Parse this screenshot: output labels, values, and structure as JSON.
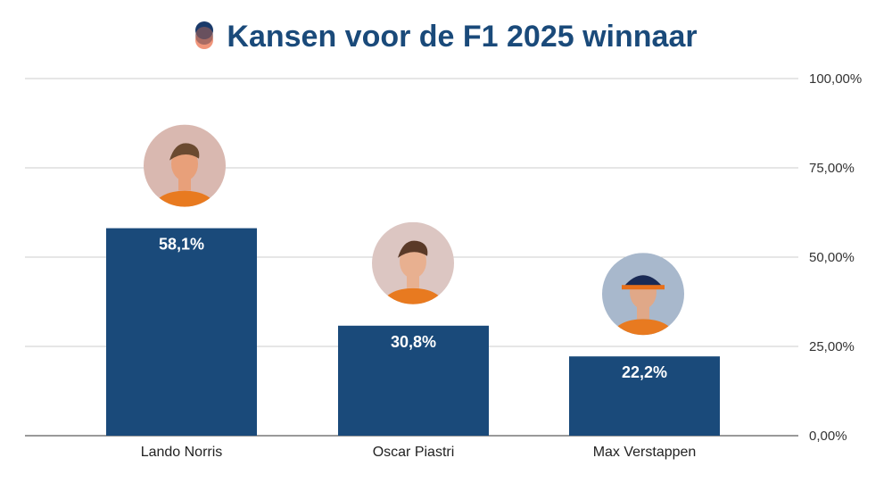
{
  "chart_data": {
    "type": "bar",
    "title": "Kansen voor de F1 2025 winnaar",
    "categories": [
      "Lando Norris",
      "Oscar Piastri",
      "Max Verstappen"
    ],
    "values": [
      58.1,
      30.8,
      22.2
    ],
    "data_labels": [
      "58,1%",
      "30,8%",
      "22,2%"
    ],
    "ylim": [
      0,
      100
    ],
    "yticks": [
      "0,00%",
      "25,00%",
      "50,00%",
      "75,00%",
      "100,00%"
    ],
    "y_axis_side": "right",
    "grid": true,
    "bar_color": "#1a4a7a",
    "title_color": "#1a4a7a",
    "title_icon": "f1-avatar-icon",
    "bar_images": [
      "driver-photo-lando-norris",
      "driver-photo-oscar-piastri",
      "driver-photo-max-verstappen"
    ]
  }
}
